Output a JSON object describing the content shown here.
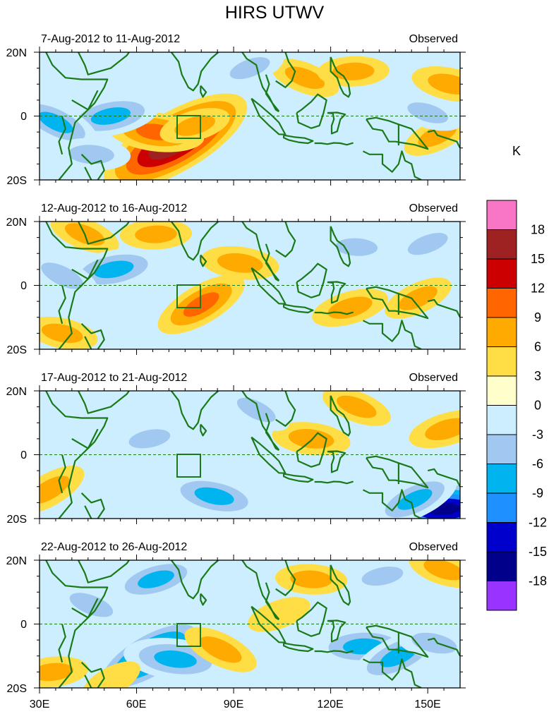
{
  "chart_data": {
    "type": "heatmap",
    "title": "HIRS UTWV",
    "units_label": "K",
    "x_ticks": [
      "30E",
      "60E",
      "90E",
      "120E",
      "150E"
    ],
    "y_ticks": [
      "20N",
      "0",
      "20S"
    ],
    "x_range_deg_east": [
      30,
      160
    ],
    "y_range_deg": [
      -20,
      20
    ],
    "colorbar": {
      "labels": [
        "18",
        "15",
        "12",
        "9",
        "6",
        "3",
        "0",
        "-3",
        "-6",
        "-9",
        "-12",
        "-15",
        "-18"
      ],
      "colors": [
        "#f777c6",
        "#9e2222",
        "#cc0000",
        "#ff6600",
        "#ffaa00",
        "#ffdd44",
        "#ffffcc",
        "#cceeff",
        "#a0c8f0",
        "#00b4f0",
        "#1e90ff",
        "#0000cd",
        "#00008b",
        "#9933ff"
      ]
    },
    "panels": [
      {
        "period": "7-Aug-2012 to 11-Aug-2012",
        "tag": "Observed",
        "anomalies": [
          {
            "lon": 72,
            "lat": -8,
            "value": 18
          },
          {
            "lon": 66,
            "lat": -5,
            "value": 8
          },
          {
            "lon": 78,
            "lat": -3,
            "value": 4
          },
          {
            "lon": 112,
            "lat": 12,
            "value": 4
          },
          {
            "lon": 127,
            "lat": 14,
            "value": 4
          },
          {
            "lon": 153,
            "lat": -6,
            "value": 4
          },
          {
            "lon": 157,
            "lat": 10,
            "value": 5
          },
          {
            "lon": 52,
            "lat": 0,
            "value": -8
          },
          {
            "lon": 35,
            "lat": -2,
            "value": -7
          },
          {
            "lon": 46,
            "lat": -12,
            "value": -5
          },
          {
            "lon": 95,
            "lat": 15,
            "value": -4
          },
          {
            "lon": 150,
            "lat": 1,
            "value": -4
          }
        ]
      },
      {
        "period": "12-Aug-2012 to 16-Aug-2012",
        "tag": "Observed",
        "anomalies": [
          {
            "lon": 80,
            "lat": -6,
            "value": 8
          },
          {
            "lon": 92,
            "lat": 7,
            "value": 5
          },
          {
            "lon": 126,
            "lat": -7,
            "value": 5
          },
          {
            "lon": 44,
            "lat": 16,
            "value": 4
          },
          {
            "lon": 66,
            "lat": 16,
            "value": 4
          },
          {
            "lon": 147,
            "lat": -4,
            "value": 4
          },
          {
            "lon": 37,
            "lat": -15,
            "value": 4
          },
          {
            "lon": 53,
            "lat": 5,
            "value": -8
          },
          {
            "lon": 37,
            "lat": 3,
            "value": -5
          },
          {
            "lon": 128,
            "lat": 12,
            "value": -4
          },
          {
            "lon": 150,
            "lat": 13,
            "value": -4
          }
        ]
      },
      {
        "period": "17-Aug-2012 to 21-Aug-2012",
        "tag": "Observed",
        "anomalies": [
          {
            "lon": 33,
            "lat": -11,
            "value": 5
          },
          {
            "lon": 114,
            "lat": 5,
            "value": 5
          },
          {
            "lon": 156,
            "lat": 8,
            "value": 5
          },
          {
            "lon": 128,
            "lat": 15,
            "value": 4
          },
          {
            "lon": 155,
            "lat": -17,
            "value": -16
          },
          {
            "lon": 146,
            "lat": -14,
            "value": -7
          },
          {
            "lon": 84,
            "lat": -13,
            "value": -8
          },
          {
            "lon": 64,
            "lat": 5,
            "value": -4
          },
          {
            "lon": 97,
            "lat": 14,
            "value": -4
          }
        ]
      },
      {
        "period": "22-Aug-2012 to 26-Aug-2012",
        "tag": "Observed",
        "anomalies": [
          {
            "lon": 64,
            "lat": -10,
            "value": -13
          },
          {
            "lon": 72,
            "lat": -11,
            "value": -9
          },
          {
            "lon": 66,
            "lat": 14,
            "value": -7
          },
          {
            "lon": 46,
            "lat": 6,
            "value": -5
          },
          {
            "lon": 130,
            "lat": -7,
            "value": -8
          },
          {
            "lon": 141,
            "lat": -10,
            "value": -8
          },
          {
            "lon": 152,
            "lat": -6,
            "value": -5
          },
          {
            "lon": 136,
            "lat": 15,
            "value": -4
          },
          {
            "lon": 86,
            "lat": -8,
            "value": 5
          },
          {
            "lon": 114,
            "lat": 14,
            "value": 4
          },
          {
            "lon": 104,
            "lat": 3,
            "value": 3
          },
          {
            "lon": 155,
            "lat": 17,
            "value": 4
          },
          {
            "lon": 34,
            "lat": -15,
            "value": 4
          },
          {
            "lon": 52,
            "lat": -18,
            "value": 3
          }
        ]
      }
    ]
  }
}
